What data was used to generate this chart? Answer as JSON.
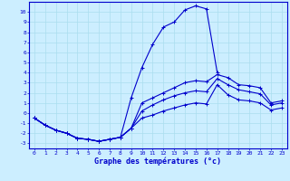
{
  "xlabel": "Graphe des températures (°c)",
  "bg_color": "#cceeff",
  "line_color": "#0000cc",
  "grid_color": "#aaddee",
  "xlim": [
    -0.5,
    23.5
  ],
  "ylim": [
    -3.5,
    11.0
  ],
  "xticks": [
    0,
    1,
    2,
    3,
    4,
    5,
    6,
    7,
    8,
    9,
    10,
    11,
    12,
    13,
    14,
    15,
    16,
    17,
    18,
    19,
    20,
    21,
    22,
    23
  ],
  "yticks": [
    -3,
    -2,
    -1,
    0,
    1,
    2,
    3,
    4,
    5,
    6,
    7,
    8,
    9,
    10
  ],
  "line1_x": [
    0,
    1,
    2,
    3,
    4,
    5,
    6,
    7,
    8,
    9,
    10,
    11,
    12,
    13,
    14,
    15,
    16,
    17
  ],
  "line1_y": [
    -0.5,
    -1.2,
    -1.7,
    -2.0,
    -2.5,
    -2.6,
    -2.8,
    -2.6,
    -2.4,
    1.5,
    4.5,
    6.8,
    8.5,
    9.0,
    10.2,
    10.6,
    10.3,
    4.0
  ],
  "line2_x": [
    0,
    1,
    2,
    3,
    4,
    5,
    6,
    7,
    8,
    9,
    10,
    11,
    12,
    13,
    14,
    15,
    16,
    17,
    18,
    19,
    20,
    21,
    22,
    23
  ],
  "line2_y": [
    -0.5,
    -1.2,
    -1.7,
    -2.0,
    -2.5,
    -2.6,
    -2.8,
    -2.6,
    -2.4,
    -1.5,
    1.0,
    1.5,
    2.0,
    2.5,
    3.0,
    3.2,
    3.1,
    3.8,
    3.5,
    2.8,
    2.7,
    2.5,
    1.0,
    1.2
  ],
  "line3_x": [
    0,
    1,
    2,
    3,
    4,
    5,
    6,
    7,
    8,
    9,
    10,
    11,
    12,
    13,
    14,
    15,
    16,
    17,
    18,
    19,
    20,
    21,
    22,
    23
  ],
  "line3_y": [
    -0.5,
    -1.2,
    -1.7,
    -2.0,
    -2.5,
    -2.6,
    -2.8,
    -2.6,
    -2.4,
    -1.5,
    0.2,
    0.8,
    1.3,
    1.7,
    2.0,
    2.2,
    2.1,
    3.4,
    2.8,
    2.3,
    2.1,
    1.9,
    0.8,
    1.0
  ],
  "line4_x": [
    0,
    1,
    2,
    3,
    4,
    5,
    6,
    7,
    8,
    9,
    10,
    11,
    12,
    13,
    14,
    15,
    16,
    17,
    18,
    19,
    20,
    21,
    22,
    23
  ],
  "line4_y": [
    -0.5,
    -1.2,
    -1.7,
    -2.0,
    -2.5,
    -2.6,
    -2.8,
    -2.6,
    -2.4,
    -1.5,
    -0.5,
    -0.2,
    0.2,
    0.5,
    0.8,
    1.0,
    0.9,
    2.8,
    1.8,
    1.3,
    1.2,
    1.0,
    0.3,
    0.5
  ],
  "xlabel_fontsize": 6,
  "tick_fontsize": 4.5,
  "lw": 0.8,
  "ms": 2.5
}
